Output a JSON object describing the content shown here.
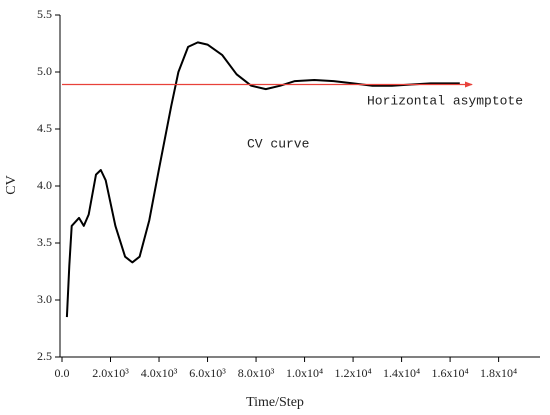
{
  "chart_data": {
    "type": "line",
    "x_label": "Time/Step",
    "y_label": "CV",
    "xlim": [
      0,
      19500
    ],
    "ylim": [
      2.5,
      5.5
    ],
    "xticks": [
      {
        "value": 0,
        "label": "0.0"
      },
      {
        "value": 2000,
        "label": "2.0x10³"
      },
      {
        "value": 4000,
        "label": "4.0x10³"
      },
      {
        "value": 6000,
        "label": "6.0x10³"
      },
      {
        "value": 8000,
        "label": "8.0x10³"
      },
      {
        "value": 10000,
        "label": "1.0x10⁴"
      },
      {
        "value": 12000,
        "label": "1.2x10⁴"
      },
      {
        "value": 14000,
        "label": "1.4x10⁴"
      },
      {
        "value": 16000,
        "label": "1.6x10⁴"
      },
      {
        "value": 18000,
        "label": "1.8x10⁴"
      }
    ],
    "yticks": [
      2.5,
      {
        "value": 3,
        "label": "3.0"
      },
      3.5,
      {
        "value": 4,
        "label": "4.0"
      },
      4.5,
      {
        "value": 5,
        "label": "5.0"
      },
      5.5
    ],
    "series": [
      {
        "color": "#000000",
        "x": [
          200,
          300,
          400,
          700,
          900,
          1100,
          1400,
          1600,
          1800,
          2200,
          2600,
          2900,
          3200,
          3600,
          4000,
          4500,
          4800,
          5200,
          5600,
          6000,
          6600,
          7200,
          7800,
          8400,
          9000,
          9600,
          10400,
          11200,
          12000,
          12800,
          13600,
          14400,
          15200,
          16000,
          16400
        ],
        "values": [
          2.85,
          3.3,
          3.65,
          3.72,
          3.65,
          3.75,
          4.1,
          4.14,
          4.05,
          3.65,
          3.38,
          3.33,
          3.38,
          3.7,
          4.15,
          4.7,
          5.0,
          5.22,
          5.26,
          5.24,
          5.15,
          4.98,
          4.88,
          4.85,
          4.88,
          4.92,
          4.93,
          4.92,
          4.9,
          4.88,
          4.88,
          4.89,
          4.9,
          4.9,
          4.9
        ]
      },
      {
        "color": "#e8413a",
        "arrow": true,
        "x": [
          0,
          16900
        ],
        "values": [
          4.89,
          4.89
        ]
      }
    ],
    "annotations": [
      "CV curve",
      "Horizontal asymptote"
    ]
  }
}
